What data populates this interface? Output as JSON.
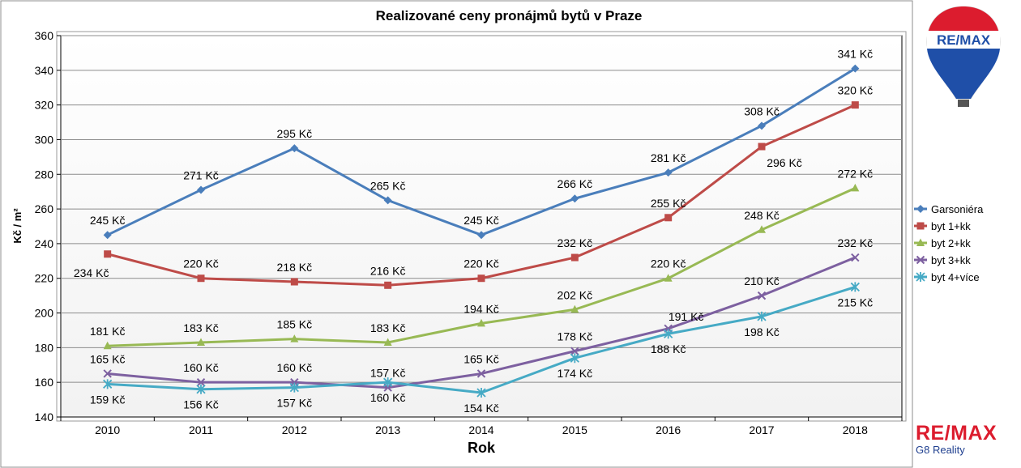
{
  "brand": {
    "balloon_text": "RE/MAX",
    "footer_name": "RE/MAX",
    "footer_sub": "G8 Reality"
  },
  "chart_data": {
    "type": "line",
    "title": "Realizované ceny pronájmů bytů v Praze",
    "xlabel": "Rok",
    "ylabel": "Kč / m²",
    "ylim": [
      140,
      360
    ],
    "yticks": [
      140,
      160,
      180,
      200,
      220,
      240,
      260,
      280,
      300,
      320,
      340,
      360
    ],
    "grid": true,
    "legend_position": "right",
    "categories": [
      "2010",
      "2011",
      "2012",
      "2013",
      "2014",
      "2015",
      "2016",
      "2017",
      "2018"
    ],
    "series": [
      {
        "name": "Garsoniéra",
        "color": "#4a7ebb",
        "marker": "diamond",
        "values": [
          245,
          271,
          295,
          265,
          245,
          266,
          281,
          308,
          341
        ],
        "labels": [
          "245 Kč",
          "271 Kč",
          "295 Kč",
          "265 Kč",
          "245 Kč",
          "266 Kč",
          "281 Kč",
          "308 Kč",
          "341 Kč"
        ],
        "label_pos": [
          "above",
          "above",
          "above",
          "above",
          "above",
          "above",
          "above",
          "above",
          "above"
        ]
      },
      {
        "name": "byt 1+kk",
        "color": "#be4b48",
        "marker": "square",
        "values": [
          234,
          220,
          218,
          216,
          220,
          232,
          255,
          296,
          320
        ],
        "labels": [
          "234 Kč",
          "220 Kč",
          "218 Kč",
          "216 Kč",
          "220 Kč",
          "232 Kč",
          "255 Kč",
          "296 Kč",
          "320 Kč"
        ],
        "label_pos": [
          "below-left",
          "above",
          "above",
          "above",
          "above",
          "above",
          "above",
          "below-right",
          "above"
        ]
      },
      {
        "name": "byt 2+kk",
        "color": "#98b954",
        "marker": "triangle",
        "values": [
          181,
          183,
          185,
          183,
          194,
          202,
          220,
          248,
          272
        ],
        "labels": [
          "181 Kč",
          "183 Kč",
          "185 Kč",
          "183 Kč",
          "194 Kč",
          "202 Kč",
          "220 Kč",
          "248 Kč",
          "272 Kč"
        ],
        "label_pos": [
          "above",
          "above",
          "above",
          "above",
          "above",
          "above",
          "above",
          "above",
          "above"
        ]
      },
      {
        "name": "byt 3+kk",
        "color": "#7d60a0",
        "marker": "x",
        "values": [
          165,
          160,
          160,
          157,
          165,
          178,
          191,
          210,
          232
        ],
        "labels": [
          "165 Kč",
          "160 Kč",
          "160 Kč",
          "157 Kč",
          "165 Kč",
          "178 Kč",
          "191 Kč",
          "210 Kč",
          "232 Kč"
        ],
        "label_pos": [
          "above",
          "above",
          "above",
          "above",
          "above",
          "above",
          "above-right",
          "above",
          "above"
        ]
      },
      {
        "name": "byt 4+více",
        "color": "#46aac5",
        "marker": "star",
        "values": [
          159,
          156,
          157,
          160,
          154,
          174,
          188,
          198,
          215
        ],
        "labels": [
          "159 Kč",
          "156 Kč",
          "157 Kč",
          "160 Kč",
          "154 Kč",
          "174 Kč",
          "188 Kč",
          "198 Kč",
          "215 Kč"
        ],
        "label_pos": [
          "below",
          "below",
          "below",
          "below",
          "below",
          "below",
          "below",
          "below",
          "below"
        ]
      }
    ]
  }
}
